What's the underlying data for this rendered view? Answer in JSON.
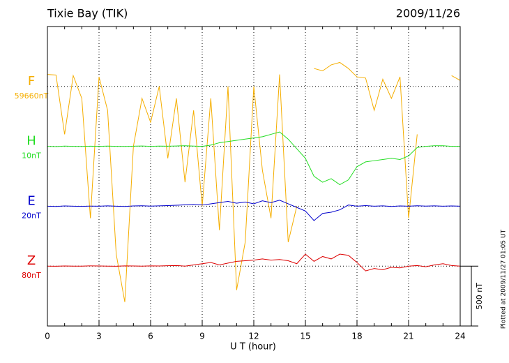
{
  "chart_data": {
    "type": "line",
    "title": "Tixie Bay (TIK)",
    "date": "2009/11/26",
    "note": "Plotted at 2009/11/27 01:05 UT",
    "xlabel": "U T (hour)",
    "xlim": [
      0,
      24
    ],
    "xticks": [
      0,
      3,
      6,
      9,
      12,
      15,
      18,
      21,
      24
    ],
    "ylim": [
      0,
      2500
    ],
    "yticks": [
      {
        "value": 500,
        "label": "80nT"
      },
      {
        "value": 1000,
        "label": "20nT"
      },
      {
        "value": 1500,
        "label": "10nT"
      },
      {
        "value": 2000,
        "label": "59660nT"
      }
    ],
    "grid": true,
    "scale_bar": {
      "from": 0,
      "to": 500,
      "label": "500 nT"
    },
    "x": [
      0,
      0.5,
      1,
      1.5,
      2,
      2.5,
      3,
      3.5,
      4,
      4.5,
      5,
      5.5,
      6,
      6.5,
      7,
      7.5,
      8,
      8.5,
      9,
      9.5,
      10,
      10.5,
      11,
      11.5,
      12,
      12.5,
      13,
      13.5,
      14,
      14.5,
      15,
      15.5,
      16,
      16.5,
      17,
      17.5,
      18,
      18.5,
      19,
      19.5,
      20,
      20.5,
      21,
      21.5,
      22,
      22.5,
      23,
      23.5,
      24
    ],
    "series": [
      {
        "name": "F",
        "color": "#f5ae00",
        "values": [
          2100,
          2095,
          1600,
          2090,
          1900,
          900,
          2080,
          1800,
          600,
          200,
          1500,
          1900,
          1700,
          2000,
          1400,
          1900,
          1200,
          1800,
          1000,
          1900,
          800,
          2000,
          300,
          700,
          2000,
          1300,
          900,
          2100,
          700,
          1000,
          null,
          2150,
          2130,
          2180,
          2200,
          2150,
          2080,
          2070,
          1800,
          2060,
          1900,
          2080,
          900,
          1600,
          null,
          null,
          null,
          2090,
          2050
        ]
      },
      {
        "name": "H",
        "color": "#22dd22",
        "values": [
          1500,
          1498,
          1502,
          1500,
          1499,
          1501,
          1500,
          1502,
          1500,
          1499,
          1501,
          1503,
          1500,
          1502,
          1501,
          1503,
          1505,
          1502,
          1500,
          1510,
          1530,
          1540,
          1550,
          1560,
          1570,
          1580,
          1600,
          1620,
          1560,
          1480,
          1400,
          1250,
          1200,
          1230,
          1180,
          1220,
          1330,
          1370,
          1380,
          1390,
          1400,
          1390,
          1420,
          1490,
          1500,
          1505,
          1505,
          1500,
          1500
        ]
      },
      {
        "name": "E",
        "color": "#0000cc",
        "values": [
          1000,
          998,
          1002,
          1000,
          999,
          1001,
          1000,
          1003,
          1000,
          998,
          1002,
          1004,
          1001,
          1003,
          1005,
          1008,
          1012,
          1015,
          1010,
          1020,
          1030,
          1040,
          1025,
          1035,
          1020,
          1045,
          1030,
          1050,
          1020,
          990,
          960,
          880,
          940,
          950,
          970,
          1010,
          1000,
          1005,
          1000,
          1003,
          998,
          1002,
          1000,
          1004,
          1001,
          1003,
          1000,
          1002,
          1000
        ]
      },
      {
        "name": "Z",
        "color": "#dd0000",
        "values": [
          500,
          499,
          501,
          500,
          500,
          502,
          501,
          500,
          499,
          502,
          501,
          500,
          502,
          501,
          503,
          505,
          500,
          510,
          520,
          530,
          510,
          525,
          540,
          545,
          550,
          560,
          550,
          555,
          545,
          520,
          600,
          540,
          580,
          560,
          600,
          590,
          530,
          460,
          480,
          470,
          490,
          485,
          500,
          505,
          495,
          510,
          520,
          505,
          500
        ]
      }
    ]
  }
}
